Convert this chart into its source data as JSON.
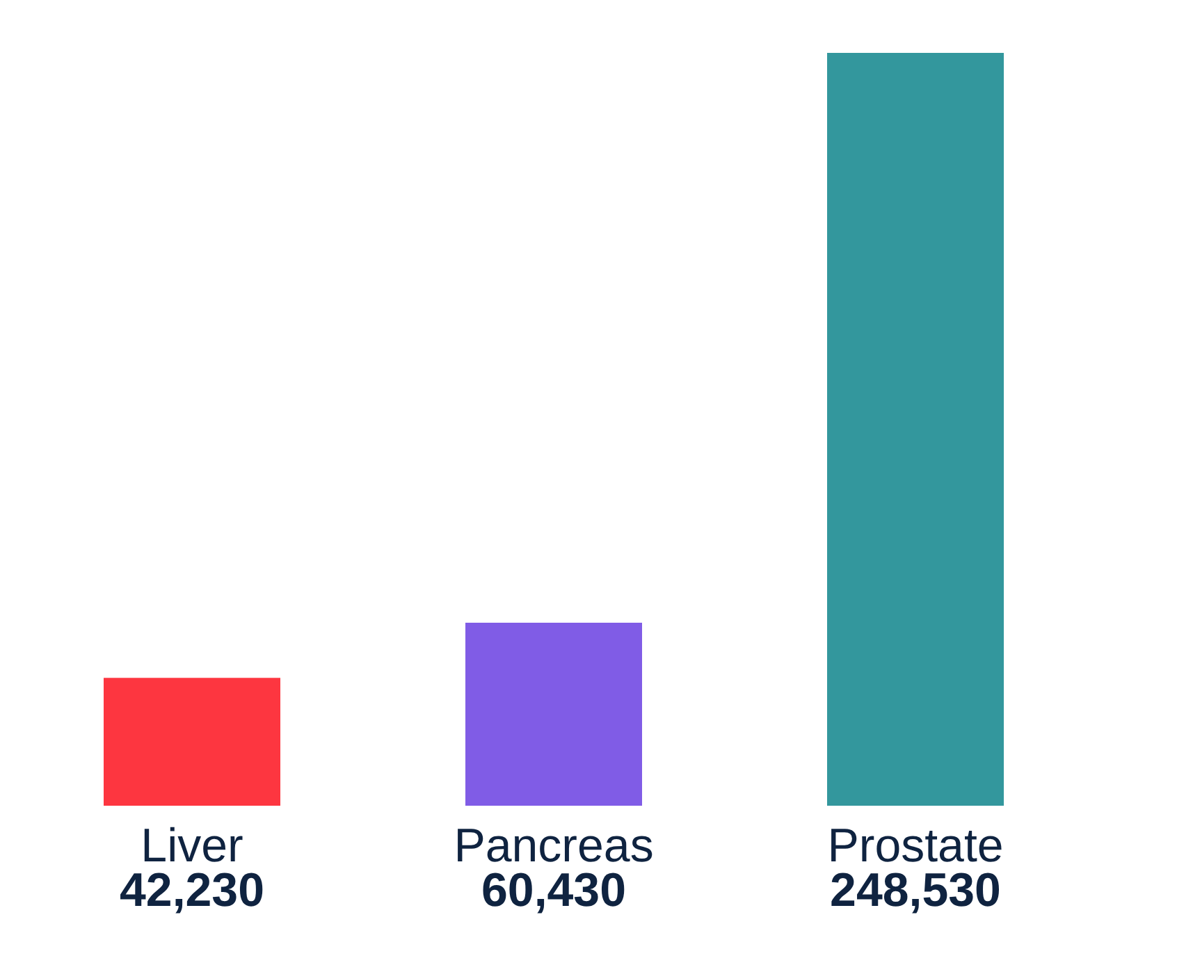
{
  "chart_data": {
    "type": "bar",
    "categories": [
      "Liver",
      "Pancreas",
      "Prostate"
    ],
    "values": [
      42230,
      60430,
      248530
    ],
    "colors": [
      "#fd3640",
      "#805ce6",
      "#33979d"
    ],
    "value_labels": [
      "42,230",
      "60,430",
      "248,530"
    ]
  }
}
